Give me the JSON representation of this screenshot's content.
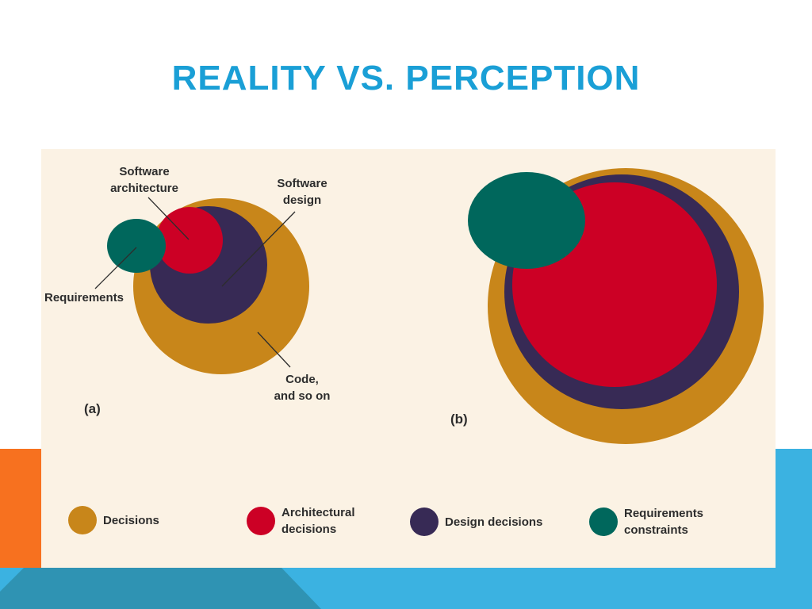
{
  "slide": {
    "title": "REALITY  VS. PERCEPTION"
  },
  "colors": {
    "title": "#1a9fd6",
    "decisions": "#c8861a",
    "architectural": "#cc0025",
    "design": "#372a55",
    "requirements": "#00675c",
    "panel_bg": "#fbf2e4",
    "accent_orange": "#f7711f",
    "accent_blue": "#3bb2e1",
    "accent_teal": "#2f93b3"
  },
  "diagram_a": {
    "panel_label": "(a)",
    "label_software_architecture": [
      "Software",
      "architecture"
    ],
    "label_software_design": [
      "Software",
      "design"
    ],
    "label_requirements": "Requirements",
    "label_code": [
      "Code,",
      "and so on"
    ]
  },
  "diagram_b": {
    "panel_label": "(b)"
  },
  "legend": [
    {
      "label": [
        "Decisions"
      ],
      "color_key": "decisions"
    },
    {
      "label": [
        "Architectural",
        "decisions"
      ],
      "color_key": "architectural"
    },
    {
      "label": [
        "Design decisions"
      ],
      "color_key": "design"
    },
    {
      "label": [
        "Requirements",
        "constraints"
      ],
      "color_key": "requirements"
    }
  ]
}
